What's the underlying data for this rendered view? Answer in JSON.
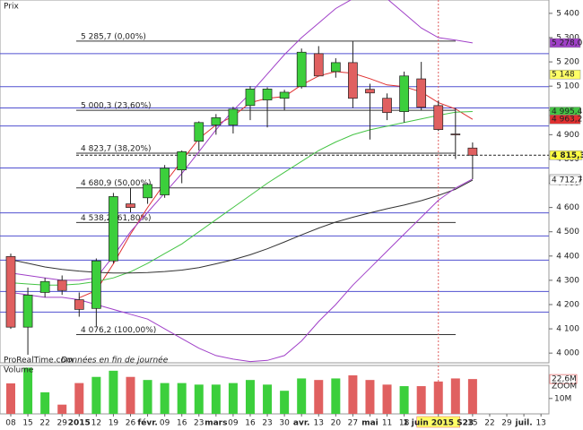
{
  "chart_data": {
    "type": "candlestick",
    "labels": {
      "price": "Prix",
      "volume": "Volume",
      "source": "ProRealTime.com",
      "source_note": "Données en fin de journée",
      "zoom": "ZOOM"
    },
    "categories": [
      "08",
      "15",
      "22",
      "29",
      "2015",
      "12",
      "19",
      "26",
      "févr.",
      "09",
      "16",
      "23",
      "mars",
      "09",
      "16",
      "23",
      "30",
      "avr.",
      "13",
      "20",
      "27",
      "mai",
      "11",
      "18",
      null,
      "1 juin 2015 S23",
      null,
      "15",
      "22",
      "29",
      "juil.",
      "13"
    ],
    "highlight_index": 25,
    "open": [
      4398,
      4107,
      4250,
      4300,
      4220,
      4184,
      4380,
      4615,
      4640,
      4652,
      4755,
      4873,
      4940,
      4940,
      5020,
      5043,
      5050,
      5098,
      5234,
      5160,
      5197,
      5087,
      5050,
      4995,
      5130,
      5020,
      4903,
      4845,
      null,
      null,
      null,
      null
    ],
    "high": [
      4410,
      4270,
      4310,
      4320,
      4250,
      4390,
      4660,
      4680,
      4700,
      4775,
      4835,
      4955,
      4985,
      5015,
      5100,
      5095,
      5085,
      5255,
      5265,
      5215,
      5285,
      5110,
      5070,
      5160,
      5200,
      5040,
      5010,
      4868,
      null,
      null,
      null,
      null
    ],
    "low": [
      4100,
      3993,
      4230,
      4240,
      4150,
      4110,
      4370,
      4580,
      4615,
      4640,
      4700,
      4835,
      4900,
      4905,
      4960,
      4930,
      5000,
      5090,
      5140,
      5135,
      5010,
      4880,
      4960,
      4950,
      5000,
      4915,
      4800,
      4717,
      null,
      null,
      null,
      null
    ],
    "close": [
      4107,
      4239,
      4295,
      4258,
      4180,
      4380,
      4645,
      4600,
      4695,
      4762,
      4830,
      4950,
      4970,
      5005,
      5088,
      5088,
      5075,
      5240,
      5142,
      5197,
      5050,
      5072,
      4991,
      5142,
      5013,
      4921,
      4900,
      4815.37,
      null,
      null,
      null,
      null
    ],
    "up_color": "#3ccf3c",
    "down_color": "#e06060",
    "ylim": [
      3960,
      5455
    ],
    "yticks": [
      {
        "value": 4000,
        "label": "4 000"
      },
      {
        "value": 4100,
        "label": "4 100"
      },
      {
        "value": 4200,
        "label": "4 200"
      },
      {
        "value": 4300,
        "label": "4 300"
      },
      {
        "value": 4400,
        "label": "4 400"
      },
      {
        "value": 4500,
        "label": "4 500"
      },
      {
        "value": 4600,
        "label": "4 600"
      },
      {
        "value": 4700,
        "label": "4 700"
      },
      {
        "value": 4800,
        "label": "4 800"
      },
      {
        "value": 4900,
        "label": "4 900"
      },
      {
        "value": 5000,
        "label": "5 000"
      },
      {
        "value": 5100,
        "label": "5 100"
      },
      {
        "value": 5200,
        "label": "5 200"
      },
      {
        "value": 5300,
        "label": "5 300"
      },
      {
        "value": 5400,
        "label": "5 400"
      }
    ],
    "overlays": [
      {
        "color": "#e03030",
        "values": [
          null,
          null,
          null,
          null,
          4228,
          4258,
          4368,
          4490,
          4600,
          4700,
          4792,
          4884,
          4940,
          4976,
          5032,
          5050,
          5057,
          5105,
          5142,
          5160,
          5153,
          5131,
          5105,
          5098,
          5076,
          5032,
          5006,
          4963.2,
          null,
          null,
          null,
          null
        ]
      },
      {
        "color": "#44c444",
        "values": [
          4290,
          4285,
          4280,
          4280,
          4285,
          4295,
          4310,
          4335,
          4370,
          4410,
          4450,
          4500,
          4550,
          4600,
          4650,
          4700,
          4745,
          4790,
          4835,
          4870,
          4900,
          4920,
          4935,
          4950,
          4965,
          4980,
          4993,
          4995.4,
          null,
          null,
          null,
          null
        ]
      },
      {
        "color": "#333333",
        "values": [
          4385,
          4370,
          4355,
          4345,
          4338,
          4333,
          4330,
          4330,
          4332,
          4336,
          4342,
          4352,
          4368,
          4385,
          4405,
          4430,
          4458,
          4487,
          4515,
          4540,
          4560,
          4578,
          4595,
          4610,
          4628,
          4650,
          4675,
          4712.7,
          null,
          null,
          null,
          null
        ]
      },
      {
        "color": "#a040c8",
        "values": [
          4330,
          4320,
          4310,
          4300,
          4300,
          4310,
          4400,
          4500,
          4580,
          4660,
          4740,
          4830,
          4920,
          5000,
          5070,
          5150,
          5230,
          5300,
          5360,
          5420,
          5460,
          5470,
          5460,
          5400,
          5340,
          5300,
          5290,
          5278,
          null,
          null,
          null,
          null
        ]
      },
      {
        "color": "#a040c8",
        "values": [
          4250,
          4240,
          4230,
          4230,
          4220,
          4200,
          4180,
          4160,
          4140,
          4100,
          4060,
          4020,
          3990,
          3975,
          3965,
          3970,
          3990,
          4050,
          4130,
          4200,
          4280,
          4350,
          4420,
          4490,
          4560,
          4630,
          4680,
          4717.4,
          null,
          null,
          null,
          null
        ]
      }
    ],
    "levels": {
      "color": "#5050d0",
      "values": [
        5234,
        5098,
        5010,
        4936,
        4763,
        4578,
        4483,
        4383,
        4254,
        4169
      ]
    },
    "fibonacci": [
      {
        "value": 5285.7,
        "label": "5 285,7 (0,00%)"
      },
      {
        "value": 5000.3,
        "label": "5 000,3 (23,60%)"
      },
      {
        "value": 4823.7,
        "label": "4 823,7 (38,20%)"
      },
      {
        "value": 4680.9,
        "label": "4 680,9 (50,00%)"
      },
      {
        "value": 4538.2,
        "label": "4 538,2 (61,80%)"
      },
      {
        "value": 4076.2,
        "label": "4 076,2 (100,00%)"
      }
    ],
    "last_price": {
      "value": 4815.37,
      "label": "4 815,37"
    },
    "price_tags": [
      {
        "value": 5278.0,
        "label": "5 278,0",
        "color": "#a040c8"
      },
      {
        "value": 5148,
        "label": "5 148",
        "color": "#ffff66"
      },
      {
        "value": 4995.4,
        "label": "4 995,4",
        "color": "#44c444"
      },
      {
        "value": 4963.2,
        "label": "4 963,2",
        "color": "#e03030"
      },
      {
        "value": 4717.4,
        "label": "4 717,4",
        "color": "#ffffff"
      },
      {
        "value": 4712.7,
        "label": "4 712,7",
        "color": "#ffffff"
      }
    ],
    "volume": {
      "values": [
        19.8,
        30,
        14,
        6,
        20,
        24,
        28,
        24,
        22,
        20,
        20,
        19,
        19,
        20,
        22,
        19,
        15,
        23,
        22,
        23,
        25,
        22,
        19,
        18,
        18,
        21,
        23,
        22.6,
        null,
        null,
        null,
        null
      ],
      "ylim": [
        0,
        31.4
      ],
      "yticks": [
        {
          "value": 10,
          "label": "10M"
        }
      ],
      "last": {
        "value": 22.6,
        "label": "22,6M"
      }
    }
  }
}
